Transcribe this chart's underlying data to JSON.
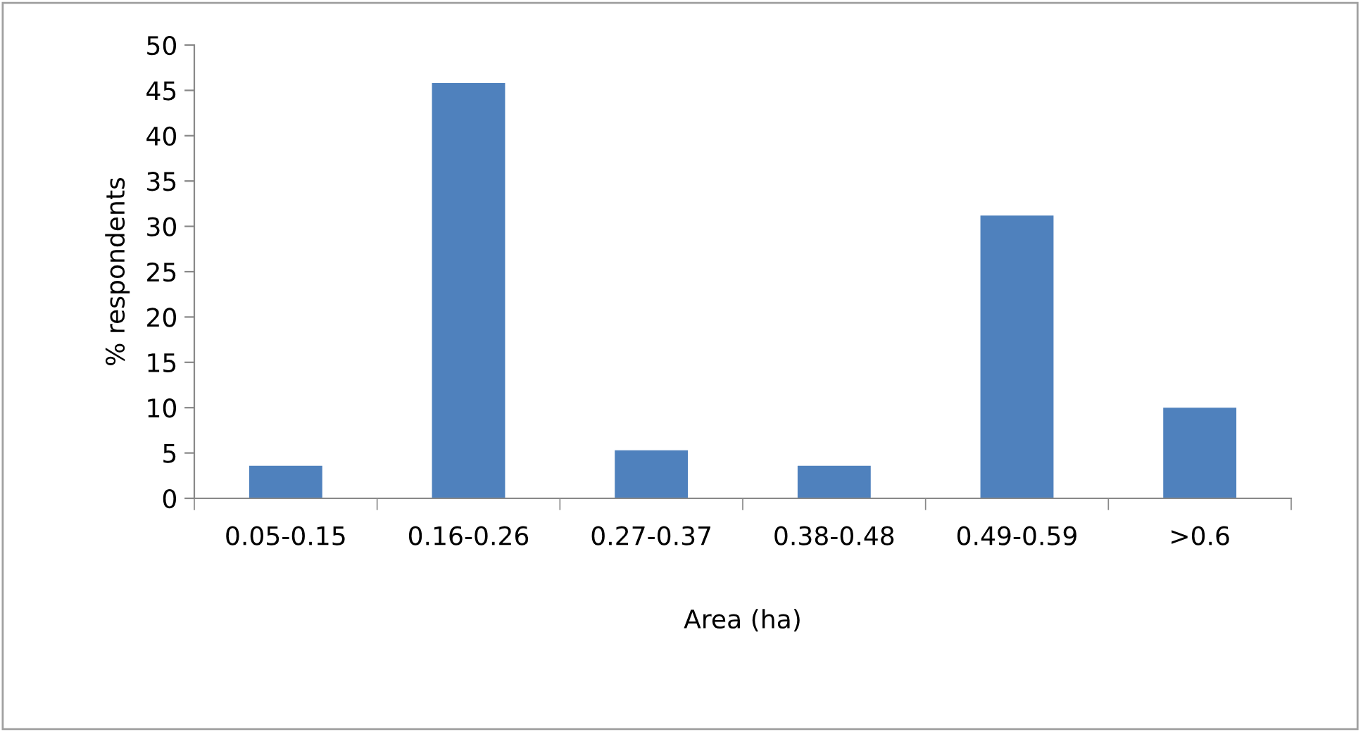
{
  "chart_data": {
    "type": "bar",
    "xlabel": "Area (ha)",
    "ylabel": "% respondents",
    "categories": [
      "0.05-0.15",
      "0.16-0.26",
      "0.27-0.37",
      "0.38-0.48",
      "0.49-0.59",
      ">0.6"
    ],
    "values": [
      3.6,
      45.8,
      5.3,
      3.6,
      31.2,
      10
    ],
    "color": "#4f81bd",
    "ylim": [
      0,
      50
    ],
    "yticks": [
      0,
      5,
      10,
      15,
      20,
      25,
      30,
      35,
      40,
      45,
      50
    ],
    "grid": false,
    "legend": false
  }
}
